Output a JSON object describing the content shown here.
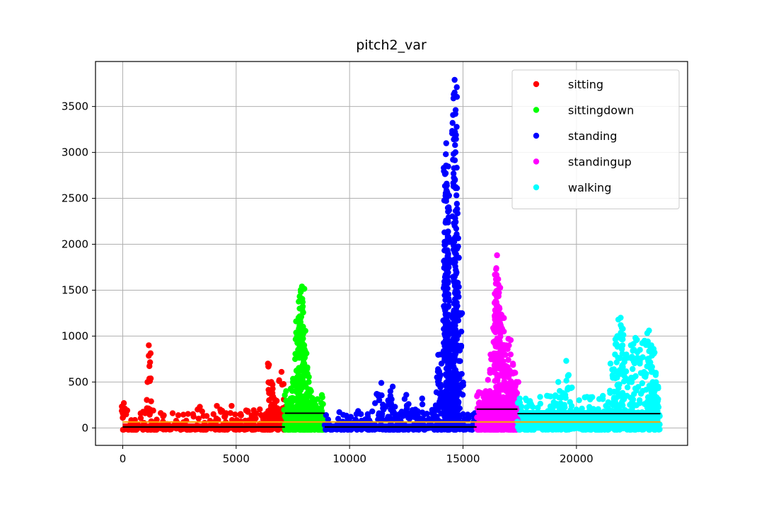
{
  "chart_data": {
    "type": "scatter",
    "title": "pitch2_var",
    "xlabel": "",
    "ylabel": "",
    "xlim": [
      -1200,
      24900
    ],
    "ylim": [
      -190,
      3990
    ],
    "x_ticks": [
      0,
      5000,
      10000,
      15000,
      20000
    ],
    "x_tick_labels": [
      "0",
      "5000",
      "10000",
      "15000",
      "20000"
    ],
    "y_ticks": [
      0,
      500,
      1000,
      1500,
      2000,
      2500,
      3000,
      3500
    ],
    "y_tick_labels": [
      "0",
      "500",
      "1000",
      "1500",
      "2000",
      "2500",
      "3000",
      "3500"
    ],
    "grid": true,
    "legend_position": "top-right",
    "series": [
      {
        "name": "sitting",
        "color": "#ff0000",
        "x_range": [
          0,
          7150
        ],
        "mean": 10,
        "points": [
          [
            50,
            270
          ],
          [
            100,
            210
          ],
          [
            200,
            190
          ],
          [
            1150,
            900
          ],
          [
            1200,
            160
          ],
          [
            1500,
            90
          ],
          [
            2000,
            40
          ],
          [
            2800,
            80
          ],
          [
            3100,
            150
          ],
          [
            3300,
            200
          ],
          [
            3400,
            230
          ],
          [
            3500,
            180
          ],
          [
            3700,
            130
          ],
          [
            4000,
            150
          ],
          [
            4150,
            240
          ],
          [
            4300,
            200
          ],
          [
            4500,
            120
          ],
          [
            4800,
            240
          ],
          [
            5000,
            60
          ],
          [
            5200,
            70
          ],
          [
            5500,
            40
          ],
          [
            5800,
            80
          ],
          [
            6100,
            140
          ],
          [
            6300,
            150
          ],
          [
            6400,
            700
          ],
          [
            6500,
            200
          ],
          [
            6550,
            500
          ],
          [
            6600,
            380
          ],
          [
            6700,
            310
          ],
          [
            6800,
            160
          ],
          [
            6900,
            120
          ],
          [
            7000,
            610
          ],
          [
            7100,
            310
          ]
        ]
      },
      {
        "name": "sittingdown",
        "color": "#00ff00",
        "x_range": [
          7150,
          8900
        ],
        "mean": 160,
        "points": [
          [
            7200,
            400
          ],
          [
            7250,
            250
          ],
          [
            7400,
            320
          ],
          [
            7500,
            500
          ],
          [
            7600,
            750
          ],
          [
            7700,
            1000
          ],
          [
            7750,
            1200
          ],
          [
            7800,
            1300
          ],
          [
            7850,
            1480
          ],
          [
            7900,
            1540
          ],
          [
            7950,
            1100
          ],
          [
            8000,
            900
          ],
          [
            8050,
            800
          ],
          [
            8100,
            650
          ],
          [
            8200,
            500
          ],
          [
            8300,
            400
          ],
          [
            8400,
            300
          ],
          [
            8500,
            250
          ],
          [
            8700,
            200
          ],
          [
            8850,
            120
          ]
        ]
      },
      {
        "name": "standing",
        "color": "#0000ff",
        "x_range": [
          8900,
          15600
        ],
        "mean": 10,
        "points": [
          [
            9000,
            30
          ],
          [
            9500,
            100
          ],
          [
            10200,
            60
          ],
          [
            10500,
            150
          ],
          [
            10800,
            150
          ],
          [
            11000,
            180
          ],
          [
            11200,
            370
          ],
          [
            11400,
            490
          ],
          [
            11500,
            200
          ],
          [
            11700,
            300
          ],
          [
            11800,
            400
          ],
          [
            11900,
            450
          ],
          [
            12000,
            230
          ],
          [
            12200,
            150
          ],
          [
            12500,
            360
          ],
          [
            12600,
            260
          ],
          [
            12900,
            200
          ],
          [
            13200,
            320
          ],
          [
            13500,
            100
          ],
          [
            13800,
            80
          ],
          [
            13900,
            640
          ],
          [
            14000,
            800
          ],
          [
            14050,
            700
          ],
          [
            14200,
            1330
          ],
          [
            14250,
            1800
          ],
          [
            14260,
            3100
          ],
          [
            14280,
            2660
          ],
          [
            14290,
            2640
          ],
          [
            14300,
            2120
          ],
          [
            14350,
            540
          ],
          [
            14400,
            660
          ],
          [
            14450,
            480
          ],
          [
            14500,
            1030
          ],
          [
            14550,
            1210
          ],
          [
            14600,
            1150
          ],
          [
            14630,
            3790
          ],
          [
            14650,
            3080
          ],
          [
            14700,
            2170
          ],
          [
            14720,
            2110
          ],
          [
            14750,
            590
          ],
          [
            14900,
            1250
          ],
          [
            15000,
            150
          ],
          [
            15200,
            90
          ]
        ]
      },
      {
        "name": "standingup",
        "color": "#ff00ff",
        "x_range": [
          15600,
          17400
        ],
        "mean": 205,
        "points": [
          [
            15700,
            390
          ],
          [
            15750,
            270
          ],
          [
            16000,
            400
          ],
          [
            16200,
            600
          ],
          [
            16300,
            800
          ],
          [
            16400,
            1100
          ],
          [
            16450,
            1250
          ],
          [
            16500,
            1880
          ],
          [
            16550,
            1620
          ],
          [
            16560,
            1560
          ],
          [
            16600,
            1310
          ],
          [
            16700,
            1230
          ],
          [
            16800,
            1050
          ],
          [
            16900,
            900
          ],
          [
            17000,
            970
          ],
          [
            17100,
            800
          ],
          [
            17200,
            700
          ],
          [
            17300,
            600
          ],
          [
            17350,
            500
          ]
        ]
      },
      {
        "name": "walking",
        "color": "#00ffff",
        "x_range": [
          17400,
          23700
        ],
        "mean": 155,
        "points": [
          [
            17500,
            320
          ],
          [
            17800,
            300
          ],
          [
            18000,
            260
          ],
          [
            18300,
            220
          ],
          [
            18700,
            350
          ],
          [
            19000,
            280
          ],
          [
            19200,
            500
          ],
          [
            19400,
            380
          ],
          [
            19550,
            730
          ],
          [
            19800,
            440
          ],
          [
            20000,
            200
          ],
          [
            20300,
            100
          ],
          [
            20500,
            60
          ],
          [
            20800,
            180
          ],
          [
            21000,
            100
          ],
          [
            21300,
            240
          ],
          [
            21500,
            700
          ],
          [
            21700,
            800
          ],
          [
            21800,
            1000
          ],
          [
            21950,
            1200
          ],
          [
            22000,
            1090
          ],
          [
            22200,
            800
          ],
          [
            22400,
            900
          ],
          [
            22600,
            980
          ],
          [
            22800,
            850
          ],
          [
            23000,
            950
          ],
          [
            23200,
            1060
          ],
          [
            23300,
            900
          ],
          [
            23400,
            860
          ],
          [
            23500,
            600
          ],
          [
            23600,
            450
          ]
        ]
      }
    ],
    "overall_mean": {
      "color": "#ffa500",
      "value": 65,
      "x_range": [
        0,
        23700
      ]
    }
  }
}
